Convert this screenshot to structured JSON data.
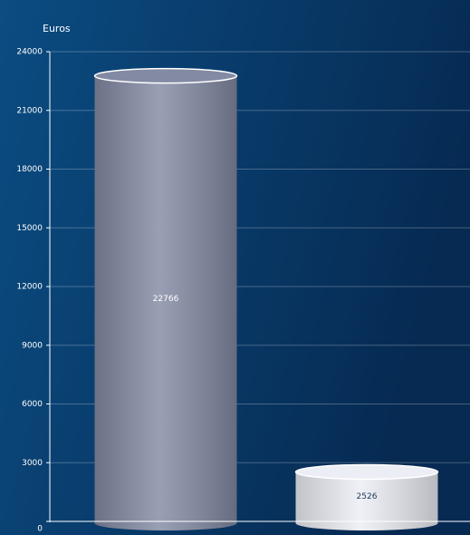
{
  "chart_data": {
    "type": "cylinder-bar",
    "y_label": "Euros",
    "categories": [
      null,
      null
    ],
    "values": [
      22766,
      2526
    ],
    "colors": [
      "#838aa3",
      "#eceef5"
    ],
    "ylim": [
      0,
      24000
    ],
    "yticks": [
      0,
      3000,
      6000,
      9000,
      12000,
      15000,
      18000,
      21000,
      24000
    ],
    "grid": true
  }
}
